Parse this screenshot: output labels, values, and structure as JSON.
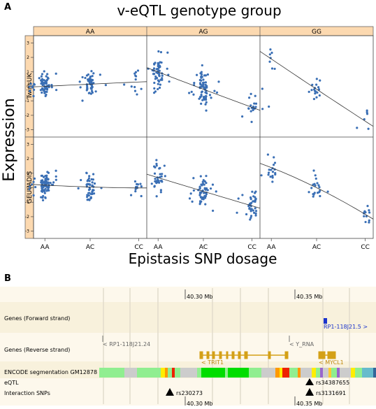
{
  "panel_a": {
    "letter": "A",
    "title": "v-eQTL genotype group",
    "ylabel": "Expression",
    "xlabel": "Epistasis SNP dosage",
    "columns": [
      "AA",
      "AG",
      "GG"
    ],
    "rows": [
      "TwinsUK",
      "GEUVADIS"
    ],
    "x_ticks": [
      "AA",
      "AC",
      "CC"
    ],
    "y_ticks": [
      "-3",
      "-2",
      "-1",
      "0",
      "1",
      "2",
      "3"
    ]
  },
  "panel_b": {
    "letter": "B",
    "scale": {
      "top_left": "40.30 Mb",
      "top_right": "40.35 Mb",
      "bottom_left": "40.30 Mb",
      "bottom_right": "40.35 Mb"
    },
    "tracks": {
      "genes_forward": "Genes (Forward strand)",
      "genes_reverse": "Genes (Reverse strand)",
      "encode": "ENCODE segmentation GM12878",
      "eqtl": "eQTL",
      "interaction": "Interaction SNPs"
    },
    "genes": {
      "fwd_gene": "RP1-118J21.5 >",
      "rev_gene1": "< RP1-118J21.24",
      "rev_gene2": "< Y_RNA",
      "trit1": "< TRIT1",
      "mycl1": "< MYCL1"
    },
    "snps": {
      "eqtl": "rs34387655",
      "interaction1": "rs230273",
      "interaction2": "rs3131691"
    },
    "colors": {
      "encode_green": "#00dd00",
      "encode_light": "#90ee90",
      "encode_grey": "#cccccc",
      "encode_orange": "#ff9900",
      "encode_red": "#ee2200",
      "encode_yellow": "#ffee00",
      "gene_gold": "#d4a017"
    }
  },
  "chart_data": {
    "type": "scatter",
    "title": "v-eQTL genotype group",
    "xlabel": "Epistasis SNP dosage",
    "ylabel": "Expression",
    "categories": [
      "AA",
      "AC",
      "CC"
    ],
    "ylim": [
      -3.5,
      3.5
    ],
    "panels": [
      {
        "genotype": "AA",
        "cohort": "TwinsUK",
        "trend": [
          0.0,
          0.15,
          0.3
        ]
      },
      {
        "genotype": "AG",
        "cohort": "TwinsUK",
        "trend": [
          1.0,
          -0.2,
          -1.45
        ]
      },
      {
        "genotype": "GG",
        "cohort": "TwinsUK",
        "trend": [
          1.9,
          -0.2,
          -2.4
        ]
      },
      {
        "genotype": "AA",
        "cohort": "GEUVADIS",
        "trend": [
          0.2,
          0.05,
          0.0
        ]
      },
      {
        "genotype": "AG",
        "cohort": "GEUVADIS",
        "trend": [
          0.7,
          -0.25,
          -1.25
        ]
      },
      {
        "genotype": "GG",
        "cohort": "GEUVADIS",
        "trend": [
          1.3,
          0.0,
          -1.9
        ]
      }
    ]
  }
}
